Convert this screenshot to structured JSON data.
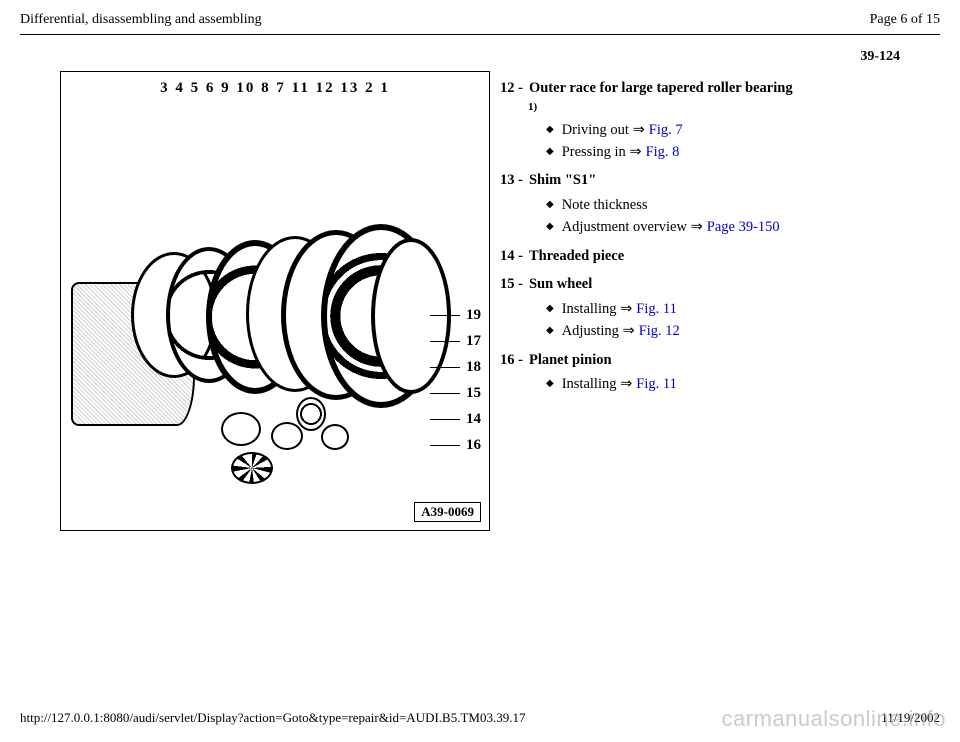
{
  "header": {
    "title": "Differential, disassembling and assembling",
    "page_x_of_y": "Page 6 of 15"
  },
  "section_number": "39-124",
  "figure": {
    "top_callouts": "3   4   5   6   9  10  8   7  11 12 13  2   1",
    "side_callouts": [
      "19",
      "17",
      "18",
      "15",
      "14",
      "16"
    ],
    "id_box": "A39-0069"
  },
  "items": [
    {
      "num": "12 -",
      "title": "Outer race for large tapered roller bearing",
      "footnote": "1)",
      "sub": [
        {
          "text": "Driving out ",
          "arrow": true,
          "link": "Fig. 7"
        },
        {
          "text": "Pressing in ",
          "arrow": true,
          "link": "Fig. 8"
        }
      ]
    },
    {
      "num": "13 -",
      "title": "Shim \"S1\"",
      "sub": [
        {
          "text": "Note thickness"
        },
        {
          "text": "Adjustment overview ",
          "arrow": true,
          "link": "Page 39-150"
        }
      ]
    },
    {
      "num": "14 -",
      "title": "Threaded piece",
      "sub": []
    },
    {
      "num": "15 -",
      "title": "Sun wheel",
      "sub": [
        {
          "text": "Installing ",
          "arrow": true,
          "link": "Fig. 11"
        },
        {
          "text": "Adjusting ",
          "arrow": true,
          "link": "Fig. 12"
        }
      ]
    },
    {
      "num": "16 -",
      "title": "Planet pinion",
      "sub": [
        {
          "text": "Installing ",
          "arrow": true,
          "link": "Fig. 11"
        }
      ]
    }
  ],
  "footer": {
    "url": "http://127.0.0.1:8080/audi/servlet/Display?action=Goto&type=repair&id=AUDI.B5.TM03.39.17",
    "date": "11/19/2002"
  },
  "watermark": "carmanualsonline.info",
  "colors": {
    "link": "#0000cc",
    "text": "#000000",
    "watermark": "#9aa3af"
  }
}
